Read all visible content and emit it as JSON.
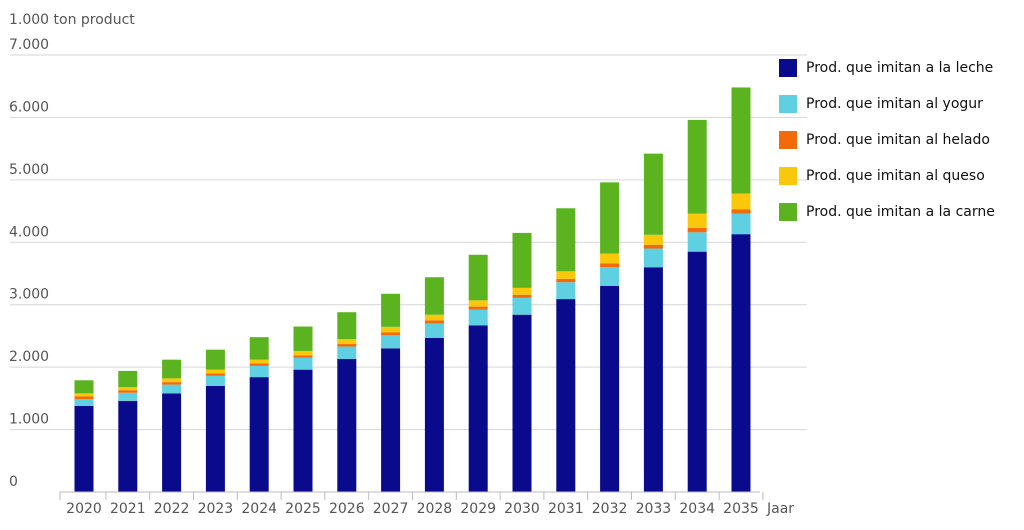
{
  "chart_data": {
    "type": "bar",
    "stacked": true,
    "title": "",
    "ylabel": "1.000 ton product",
    "xlabel": "Jaar",
    "ylim": [
      0,
      7000
    ],
    "y_ticks": [
      "0",
      "1.000",
      "2.000",
      "3.000",
      "4.000",
      "5.000",
      "6.000",
      "7.000"
    ],
    "grid": true,
    "legend_position": "right",
    "categories": [
      "2020",
      "2021",
      "2022",
      "2023",
      "2024",
      "2025",
      "2026",
      "2027",
      "2028",
      "2029",
      "2030",
      "2031",
      "2032",
      "2033",
      "2034",
      "2035"
    ],
    "series": [
      {
        "name": "Prod. que imitan a la leche",
        "color": "#0a0a8c",
        "values": [
          1380,
          1460,
          1580,
          1700,
          1840,
          1960,
          2130,
          2300,
          2470,
          2670,
          2840,
          3090,
          3300,
          3600,
          3850,
          4130
        ]
      },
      {
        "name": "Prod. que imitan al yogur",
        "color": "#5fcfe2",
        "values": [
          110,
          130,
          140,
          160,
          180,
          190,
          200,
          210,
          230,
          250,
          270,
          270,
          300,
          300,
          310,
          330
        ]
      },
      {
        "name": "Prod. que imitan al helado",
        "color": "#f26b0a",
        "values": [
          40,
          40,
          40,
          40,
          40,
          40,
          40,
          45,
          50,
          50,
          50,
          55,
          60,
          60,
          70,
          70
        ]
      },
      {
        "name": "Prod. que imitan al queso",
        "color": "#f9c80b",
        "values": [
          50,
          50,
          60,
          60,
          60,
          70,
          80,
          90,
          90,
          100,
          110,
          120,
          160,
          160,
          230,
          250
        ]
      },
      {
        "name": "Prod. que imitan a la carne",
        "color": "#5bb31f",
        "values": [
          210,
          260,
          300,
          320,
          360,
          390,
          430,
          530,
          600,
          730,
          880,
          1010,
          1140,
          1300,
          1500,
          1700
        ]
      }
    ]
  }
}
